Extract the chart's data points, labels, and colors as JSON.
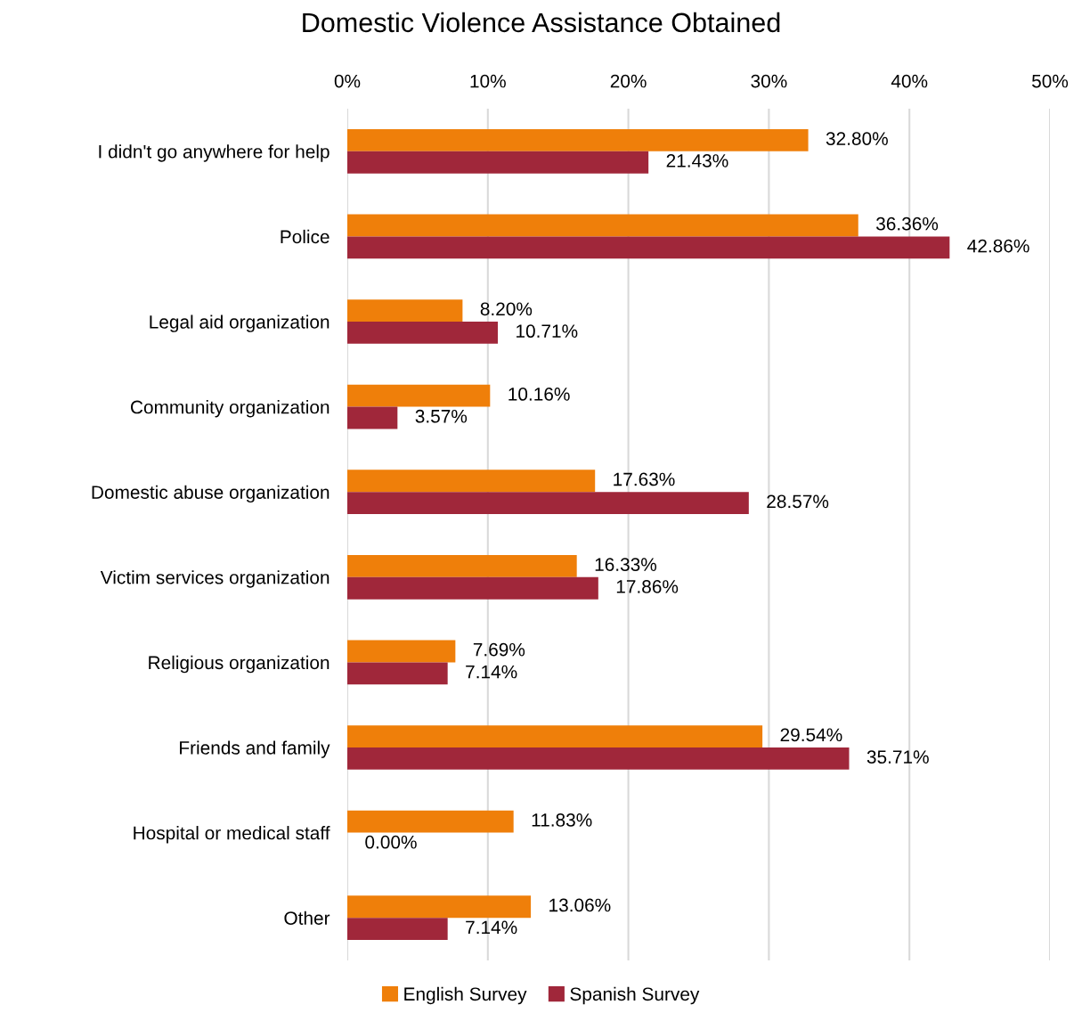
{
  "chart_data": {
    "type": "bar",
    "orientation": "horizontal",
    "title": "Domestic Violence Assistance Obtained",
    "categories": [
      "I didn't go anywhere for help",
      "Police",
      "Legal aid organization",
      "Community organization",
      "Domestic abuse organization",
      "Victim services organization",
      "Religious organization",
      "Friends and family",
      "Hospital or medical staff",
      "Other"
    ],
    "series": [
      {
        "name": "English Survey",
        "color": "#ef7f0a",
        "values": [
          32.8,
          36.36,
          8.2,
          10.16,
          17.63,
          16.33,
          7.69,
          29.54,
          11.83,
          13.06
        ],
        "value_labels": [
          "32.80%",
          "36.36%",
          "8.20%",
          "10.16%",
          "17.63%",
          "16.33%",
          "7.69%",
          "29.54%",
          "11.83%",
          "13.06%"
        ]
      },
      {
        "name": "Spanish Survey",
        "color": "#a0273a",
        "values": [
          21.43,
          42.86,
          10.71,
          3.57,
          28.57,
          17.86,
          7.14,
          35.71,
          0.0,
          7.14
        ],
        "value_labels": [
          "21.43%",
          "42.86%",
          "10.71%",
          "3.57%",
          "28.57%",
          "17.86%",
          "7.14%",
          "35.71%",
          "0.00%",
          "7.14%"
        ]
      }
    ],
    "xlim": [
      0,
      50
    ],
    "xticks": [
      {
        "value": 0,
        "label": "0%"
      },
      {
        "value": 10,
        "label": "10%"
      },
      {
        "value": 20,
        "label": "20%"
      },
      {
        "value": 30,
        "label": "30%"
      },
      {
        "value": 40,
        "label": "40%"
      },
      {
        "value": 50,
        "label": "50%"
      }
    ],
    "grid": "x",
    "legend": "bottom"
  }
}
